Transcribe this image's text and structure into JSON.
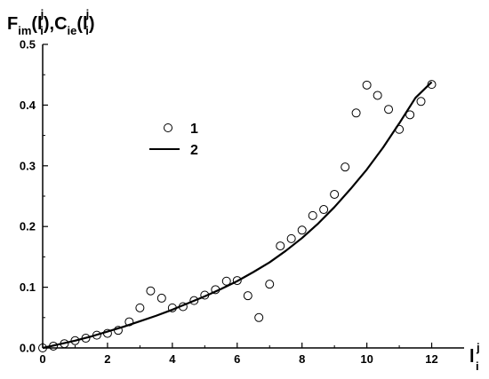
{
  "chart_data": {
    "type": "scatter",
    "xlabel": {
      "base": "l",
      "sup": "j",
      "sub": "i"
    },
    "ylabel": {
      "parts": [
        {
          "text": "F",
          "style": "base"
        },
        {
          "text": "im",
          "style": "sub"
        },
        {
          "text": "(l",
          "style": "base"
        },
        {
          "text": "j",
          "style": "sup"
        },
        {
          "text": "i",
          "style": "sub"
        },
        {
          "text": "),C",
          "style": "base"
        },
        {
          "text": "ie",
          "style": "sub"
        },
        {
          "text": "(l",
          "style": "base"
        },
        {
          "text": "j",
          "style": "sup"
        },
        {
          "text": "i",
          "style": "sub"
        },
        {
          "text": ")",
          "style": "base"
        }
      ]
    },
    "xlim": [
      0,
      13
    ],
    "ylim": [
      0,
      0.5
    ],
    "xticks": [
      0,
      2,
      4,
      6,
      8,
      10,
      12
    ],
    "yticks": [
      0.0,
      0.1,
      0.2,
      0.3,
      0.4,
      0.5
    ],
    "xtick_labels": [
      "0",
      "2",
      "4",
      "6",
      "8",
      "10",
      "12"
    ],
    "ytick_labels": [
      "0.0",
      "0.1",
      "0.2",
      "0.3",
      "0.4",
      "0.5"
    ],
    "grid": false,
    "legend_position": "upper-left",
    "series": [
      {
        "name": "1",
        "kind": "scatter",
        "marker": "open-circle",
        "x": [
          0.0,
          0.33,
          0.67,
          1.0,
          1.33,
          1.67,
          2.0,
          2.33,
          2.67,
          3.0,
          3.33,
          3.67,
          4.0,
          4.33,
          4.67,
          5.0,
          5.33,
          5.67,
          6.0,
          6.33,
          6.67,
          7.0,
          7.33,
          7.67,
          8.0,
          8.33,
          8.67,
          9.0,
          9.33,
          9.67,
          10.0,
          10.33,
          10.67,
          11.0,
          11.33,
          11.67,
          12.0
        ],
        "y": [
          0.0,
          0.003,
          0.007,
          0.012,
          0.016,
          0.021,
          0.024,
          0.029,
          0.043,
          0.066,
          0.094,
          0.082,
          0.066,
          0.068,
          0.078,
          0.087,
          0.096,
          0.11,
          0.111,
          0.086,
          0.05,
          0.105,
          0.168,
          0.18,
          0.194,
          0.218,
          0.228,
          0.253,
          0.298,
          0.387,
          0.433,
          0.416,
          0.393,
          0.36,
          0.384,
          0.406,
          0.434
        ]
      },
      {
        "name": "2",
        "kind": "line",
        "x": [
          0.0,
          0.5,
          1.0,
          1.5,
          2.0,
          2.5,
          3.0,
          3.5,
          4.0,
          4.5,
          5.0,
          5.5,
          6.0,
          6.5,
          7.0,
          7.5,
          8.0,
          8.5,
          9.0,
          9.5,
          10.0,
          10.5,
          11.0,
          11.5,
          12.0
        ],
        "y": [
          0.0,
          0.006,
          0.012,
          0.019,
          0.027,
          0.035,
          0.044,
          0.053,
          0.063,
          0.074,
          0.085,
          0.097,
          0.11,
          0.125,
          0.141,
          0.16,
          0.181,
          0.205,
          0.232,
          0.262,
          0.294,
          0.33,
          0.37,
          0.412,
          0.438
        ]
      }
    ]
  }
}
